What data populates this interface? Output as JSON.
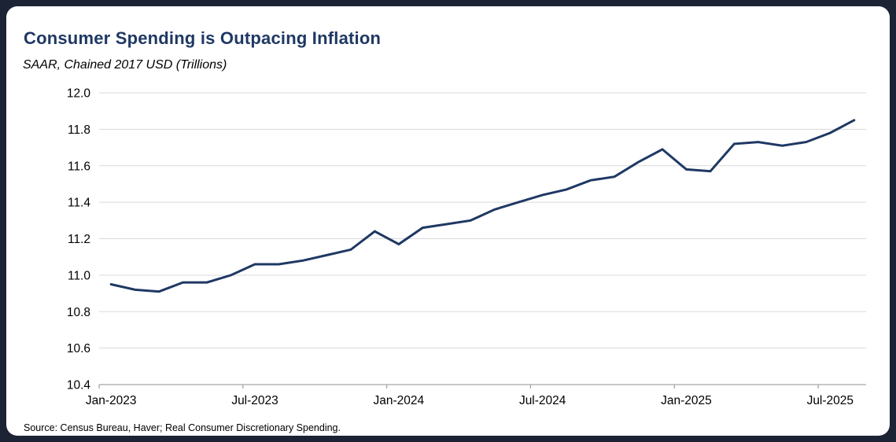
{
  "header": {
    "title": "Consumer Spending is Outpacing Inflation",
    "subtitle": "SAAR, Chained 2017 USD (Trillions)"
  },
  "footer": {
    "source": "Source: Census Bureau, Haver; Real Consumer Discretionary Spending."
  },
  "colors": {
    "frame_background": "#1b2335",
    "card_background": "#ffffff",
    "title_text": "#1f3864",
    "line": "#1f3864",
    "gridline": "#d9d9d9",
    "axis": "#a6a6a6",
    "label_text": "#000000"
  },
  "chart_data": {
    "type": "line",
    "title": "Consumer Spending is Outpacing Inflation",
    "subtitle": "SAAR, Chained 2017 USD (Trillions)",
    "series_name": "Real Consumer Discretionary Spending",
    "x": [
      "Jan-2023",
      "Feb-2023",
      "Mar-2023",
      "Apr-2023",
      "May-2023",
      "Jun-2023",
      "Jul-2023",
      "Aug-2023",
      "Sep-2023",
      "Oct-2023",
      "Nov-2023",
      "Dec-2023",
      "Jan-2024",
      "Feb-2024",
      "Mar-2024",
      "Apr-2024",
      "May-2024",
      "Jun-2024",
      "Jul-2024",
      "Aug-2024",
      "Sep-2024",
      "Oct-2024",
      "Nov-2024",
      "Dec-2024",
      "Jan-2025",
      "Feb-2025",
      "Mar-2025",
      "Apr-2025",
      "May-2025",
      "Jun-2025",
      "Jul-2025",
      "Aug-2025"
    ],
    "values": [
      10.95,
      10.92,
      10.91,
      10.96,
      10.96,
      11.0,
      11.06,
      11.06,
      11.08,
      11.11,
      11.14,
      11.24,
      11.17,
      11.26,
      11.28,
      11.3,
      11.36,
      11.4,
      11.44,
      11.47,
      11.52,
      11.54,
      11.62,
      11.69,
      11.58,
      11.57,
      11.72,
      11.73,
      11.71,
      11.73,
      11.78,
      11.85
    ],
    "ylim": [
      10.4,
      12.0
    ],
    "ytick_step": 0.2,
    "ytick_labels": [
      "10.4",
      "10.6",
      "10.8",
      "11.0",
      "11.2",
      "11.4",
      "11.6",
      "11.8",
      "12.0"
    ],
    "xtick_labels": [
      "Jan-2023",
      "Jul-2023",
      "Jan-2024",
      "Jul-2024",
      "Jan-2025",
      "Jul-2025"
    ],
    "xtick_indices": [
      0,
      6,
      12,
      18,
      24,
      30
    ],
    "grid": "horizontal",
    "legend": "none",
    "line_color": "#1f3864"
  }
}
